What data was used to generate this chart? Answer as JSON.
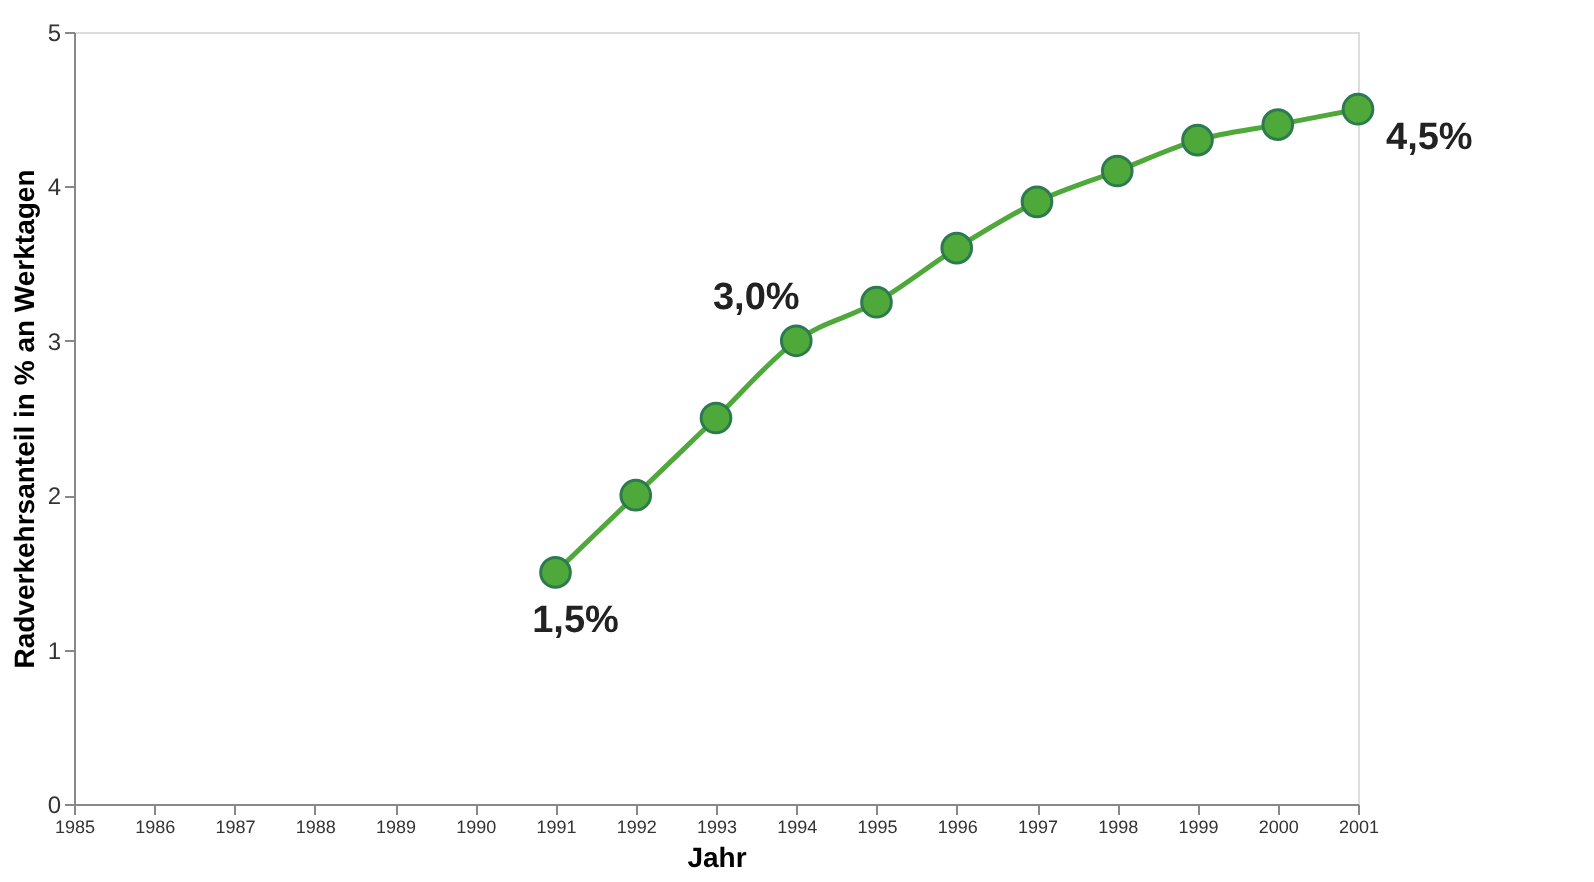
{
  "chart_data": {
    "type": "line",
    "xlabel": "Jahr",
    "ylabel": "Radverkehrsanteil in % an Werktagen",
    "x": [
      1991,
      1992,
      1993,
      1994,
      1995,
      1996,
      1997,
      1998,
      1999,
      2000,
      2001
    ],
    "series": [
      {
        "color": "#4fa83a",
        "values": [
          1.5,
          2.0,
          2.5,
          3.0,
          3.25,
          3.6,
          3.9,
          4.1,
          4.3,
          4.4,
          4.5
        ]
      }
    ],
    "xlim": [
      1985,
      2001
    ],
    "xticks": [
      1985,
      1986,
      1987,
      1988,
      1989,
      1990,
      1991,
      1992,
      1993,
      1994,
      1995,
      1996,
      1997,
      1998,
      1999,
      2000,
      2001
    ],
    "ylim": [
      0,
      5
    ],
    "yticks": [
      0,
      1,
      2,
      3,
      4,
      5
    ],
    "grid": false,
    "marker": "circle",
    "line_style": "solid",
    "annotations": [
      {
        "text": "1,5%",
        "x": 1991,
        "y": 1.5
      },
      {
        "text": "3,0%",
        "x": 1994,
        "y": 3.0
      },
      {
        "text": "4,5%",
        "x": 2001,
        "y": 4.5
      }
    ]
  }
}
